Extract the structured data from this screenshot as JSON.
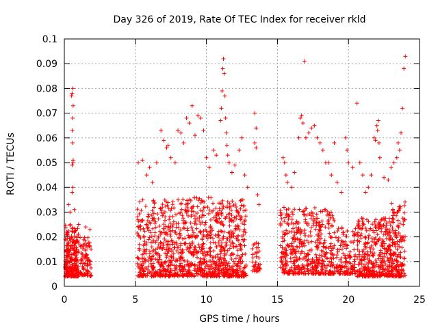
{
  "chart_data": {
    "type": "scatter",
    "title": "Day 326 of 2019, Rate Of TEC Index for receiver rkld",
    "xlabel": "GPS time / hours",
    "ylabel": "ROTI / TECUs",
    "xlim": [
      0,
      25
    ],
    "ylim": [
      0,
      0.1
    ],
    "xticks": [
      0,
      5,
      10,
      15,
      20,
      25
    ],
    "xtick_labels": [
      "0",
      "5",
      "10",
      "15",
      "20",
      "25"
    ],
    "yticks": [
      0,
      0.01,
      0.02,
      0.03,
      0.04,
      0.05,
      0.06,
      0.07,
      0.08,
      0.09,
      0.1
    ],
    "ytick_labels": [
      "0",
      "0.01",
      "0.02",
      "0.03",
      "0.04",
      "0.05",
      "0.06",
      "0.07",
      "0.08",
      "0.09",
      "0.1"
    ],
    "grid": true,
    "marker": "+",
    "color": "#ff0000",
    "clusters": [
      {
        "x": [
          0.05,
          1.0
        ],
        "y": [
          0.004,
          0.025
        ],
        "count": 260
      },
      {
        "x": [
          1.1,
          1.9
        ],
        "y": [
          0.004,
          0.02
        ],
        "count": 90
      },
      {
        "x": [
          5.1,
          8.2
        ],
        "y": [
          0.004,
          0.035
        ],
        "count": 420
      },
      {
        "x": [
          8.2,
          10.8
        ],
        "y": [
          0.004,
          0.036
        ],
        "count": 360
      },
      {
        "x": [
          10.8,
          12.8
        ],
        "y": [
          0.004,
          0.035
        ],
        "count": 320
      },
      {
        "x": [
          13.2,
          13.8
        ],
        "y": [
          0.006,
          0.018
        ],
        "count": 40
      },
      {
        "x": [
          15.2,
          19.0
        ],
        "y": [
          0.005,
          0.032
        ],
        "count": 480
      },
      {
        "x": [
          19.1,
          20.5
        ],
        "y": [
          0.005,
          0.024
        ],
        "count": 130
      },
      {
        "x": [
          20.6,
          23.0
        ],
        "y": [
          0.004,
          0.028
        ],
        "count": 360
      },
      {
        "x": [
          23.0,
          24.0
        ],
        "y": [
          0.004,
          0.035
        ],
        "count": 160
      }
    ],
    "points": [
      [
        0.5,
        0.077
      ],
      [
        0.55,
        0.078
      ],
      [
        0.6,
        0.08
      ],
      [
        0.62,
        0.073
      ],
      [
        0.58,
        0.068
      ],
      [
        0.56,
        0.063
      ],
      [
        0.58,
        0.058
      ],
      [
        0.6,
        0.05
      ],
      [
        0.55,
        0.049
      ],
      [
        0.62,
        0.051
      ],
      [
        0.6,
        0.04
      ],
      [
        0.55,
        0.038
      ],
      [
        0.3,
        0.033
      ],
      [
        0.4,
        0.03
      ],
      [
        0.7,
        0.031
      ],
      [
        1.0,
        0.025
      ],
      [
        1.5,
        0.024
      ],
      [
        1.8,
        0.023
      ],
      [
        5.2,
        0.05
      ],
      [
        5.5,
        0.051
      ],
      [
        5.8,
        0.045
      ],
      [
        6.0,
        0.048
      ],
      [
        6.2,
        0.042
      ],
      [
        6.5,
        0.05
      ],
      [
        6.8,
        0.063
      ],
      [
        7.0,
        0.059
      ],
      [
        7.2,
        0.056
      ],
      [
        7.3,
        0.057
      ],
      [
        7.5,
        0.052
      ],
      [
        7.8,
        0.05
      ],
      [
        8.0,
        0.063
      ],
      [
        8.2,
        0.062
      ],
      [
        8.4,
        0.058
      ],
      [
        8.6,
        0.068
      ],
      [
        8.8,
        0.066
      ],
      [
        9.0,
        0.073
      ],
      [
        9.2,
        0.061
      ],
      [
        9.4,
        0.069
      ],
      [
        9.6,
        0.068
      ],
      [
        9.8,
        0.063
      ],
      [
        10.0,
        0.052
      ],
      [
        10.2,
        0.048
      ],
      [
        10.5,
        0.055
      ],
      [
        10.7,
        0.053
      ],
      [
        11.0,
        0.067
      ],
      [
        11.05,
        0.072
      ],
      [
        11.1,
        0.079
      ],
      [
        11.15,
        0.088
      ],
      [
        11.2,
        0.092
      ],
      [
        11.25,
        0.086
      ],
      [
        11.3,
        0.077
      ],
      [
        11.35,
        0.068
      ],
      [
        11.4,
        0.062
      ],
      [
        11.45,
        0.057
      ],
      [
        11.5,
        0.053
      ],
      [
        11.6,
        0.05
      ],
      [
        11.8,
        0.046
      ],
      [
        12.0,
        0.049
      ],
      [
        12.3,
        0.055
      ],
      [
        12.5,
        0.06
      ],
      [
        12.7,
        0.045
      ],
      [
        12.9,
        0.04
      ],
      [
        13.4,
        0.07
      ],
      [
        13.5,
        0.064
      ],
      [
        13.4,
        0.058
      ],
      [
        13.5,
        0.056
      ],
      [
        13.6,
        0.037
      ],
      [
        13.7,
        0.033
      ],
      [
        15.4,
        0.052
      ],
      [
        15.5,
        0.05
      ],
      [
        15.6,
        0.045
      ],
      [
        15.7,
        0.042
      ],
      [
        16.0,
        0.04
      ],
      [
        16.2,
        0.046
      ],
      [
        16.5,
        0.06
      ],
      [
        16.6,
        0.068
      ],
      [
        16.7,
        0.069
      ],
      [
        16.8,
        0.066
      ],
      [
        16.9,
        0.091
      ],
      [
        17.0,
        0.06
      ],
      [
        17.2,
        0.062
      ],
      [
        17.4,
        0.064
      ],
      [
        17.6,
        0.065
      ],
      [
        17.8,
        0.06
      ],
      [
        18.0,
        0.058
      ],
      [
        18.2,
        0.055
      ],
      [
        18.4,
        0.05
      ],
      [
        18.6,
        0.05
      ],
      [
        18.8,
        0.045
      ],
      [
        19.0,
        0.058
      ],
      [
        19.2,
        0.042
      ],
      [
        19.5,
        0.038
      ],
      [
        19.8,
        0.06
      ],
      [
        19.9,
        0.055
      ],
      [
        20.0,
        0.05
      ],
      [
        20.3,
        0.048
      ],
      [
        20.6,
        0.074
      ],
      [
        20.8,
        0.05
      ],
      [
        21.0,
        0.045
      ],
      [
        21.2,
        0.038
      ],
      [
        21.4,
        0.04
      ],
      [
        21.6,
        0.045
      ],
      [
        21.8,
        0.06
      ],
      [
        21.9,
        0.059
      ],
      [
        22.0,
        0.065
      ],
      [
        22.05,
        0.063
      ],
      [
        22.1,
        0.067
      ],
      [
        22.15,
        0.058
      ],
      [
        22.2,
        0.052
      ],
      [
        22.5,
        0.044
      ],
      [
        22.8,
        0.043
      ],
      [
        23.0,
        0.048
      ],
      [
        23.2,
        0.05
      ],
      [
        23.4,
        0.052
      ],
      [
        23.5,
        0.058
      ],
      [
        23.6,
        0.055
      ],
      [
        23.7,
        0.062
      ],
      [
        23.8,
        0.072
      ],
      [
        23.9,
        0.088
      ],
      [
        24.0,
        0.093
      ]
    ]
  }
}
